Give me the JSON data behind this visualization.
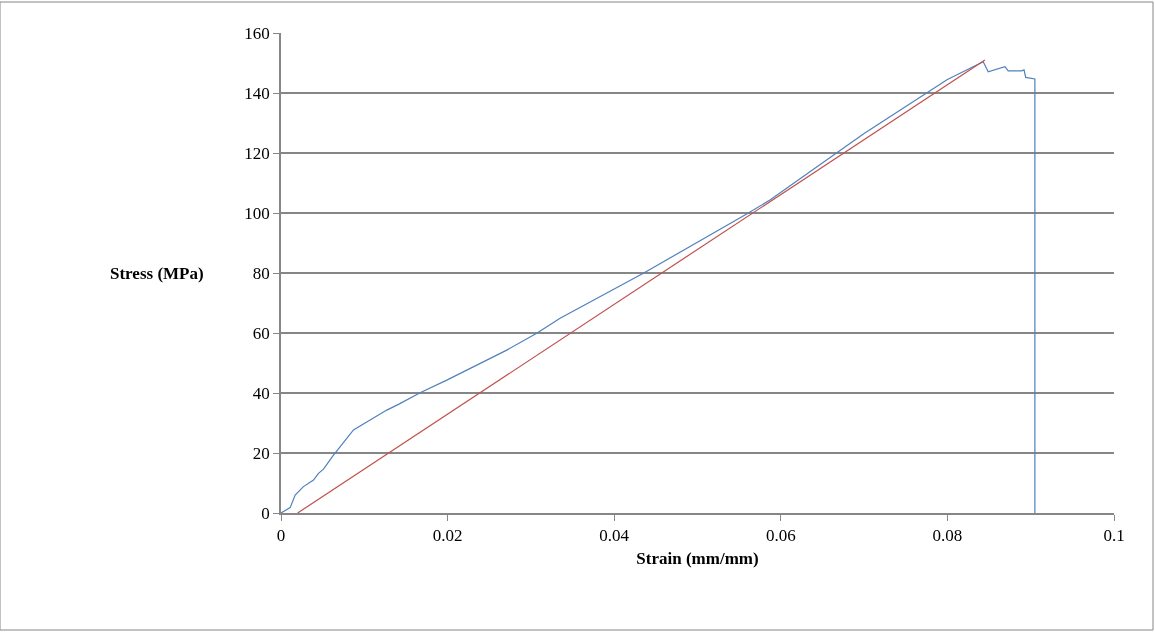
{
  "chart_data": {
    "type": "line",
    "xlabel": "Strain (mm/mm)",
    "ylabel": "Stress (MPa)",
    "xlim": [
      0,
      0.1
    ],
    "xticks": [
      0,
      0.02,
      0.04,
      0.06,
      0.08,
      0.1
    ],
    "ylim": [
      0,
      160
    ],
    "yticks": [
      0,
      20,
      40,
      60,
      80,
      100,
      120,
      140,
      160
    ],
    "grid": "y",
    "marker": "none",
    "line_style": "solid",
    "series": [
      {
        "color": "#4f81bd",
        "x": [
          0,
          0.0011,
          0.0017,
          0.0027,
          0.0039,
          0.0045,
          0.0051,
          0.0063,
          0.0087,
          0.0107,
          0.0127,
          0.0141,
          0.0167,
          0.0199,
          0.0271,
          0.0307,
          0.0335,
          0.0435,
          0.0559,
          0.0587,
          0.07,
          0.08,
          0.0843,
          0.0849,
          0.0869,
          0.0873,
          0.0889,
          0.0892,
          0.0894,
          0.0905,
          0.0905
        ],
        "values": [
          0,
          1.8,
          6,
          8.8,
          11,
          13.2,
          14.6,
          19.3,
          27.7,
          31,
          34.3,
          36.2,
          40.1,
          44.3,
          54.3,
          59.9,
          64.9,
          79.9,
          99.7,
          104.3,
          126.5,
          144.5,
          150.4,
          147.1,
          148.8,
          147.4,
          147.4,
          147.7,
          145.2,
          144.7,
          0
        ]
      },
      {
        "color": "#c0504d",
        "x": [
          0.002,
          0.0845
        ],
        "values": [
          0,
          151
        ]
      }
    ]
  }
}
